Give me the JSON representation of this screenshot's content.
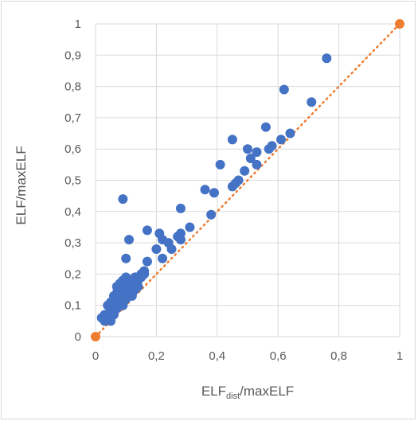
{
  "chart_data": {
    "type": "scatter",
    "title": "",
    "xlabel": {
      "main": "ELF",
      "subscript": "dist",
      "suffix": "/maxELF"
    },
    "ylabel": "ELF/maxELF",
    "xlim": [
      0,
      1
    ],
    "ylim": [
      0,
      1
    ],
    "x_ticks": [
      {
        "value": 0,
        "label": "0"
      },
      {
        "value": 0.2,
        "label": "0,2"
      },
      {
        "value": 0.4,
        "label": "0,4"
      },
      {
        "value": 0.6,
        "label": "0,6"
      },
      {
        "value": 0.8,
        "label": "0,8"
      },
      {
        "value": 1,
        "label": "1"
      }
    ],
    "y_ticks": [
      {
        "value": 0,
        "label": "0"
      },
      {
        "value": 0.1,
        "label": "0,1"
      },
      {
        "value": 0.2,
        "label": "0,2"
      },
      {
        "value": 0.3,
        "label": "0,3"
      },
      {
        "value": 0.4,
        "label": "0,4"
      },
      {
        "value": 0.5,
        "label": "0,5"
      },
      {
        "value": 0.6,
        "label": "0,6"
      },
      {
        "value": 0.7,
        "label": "0,7"
      },
      {
        "value": 0.8,
        "label": "0,8"
      },
      {
        "value": 0.9,
        "label": "0,9"
      },
      {
        "value": 1,
        "label": "1"
      }
    ],
    "grid": true,
    "legend": "none",
    "colors": {
      "points": "#4472c4",
      "reference": "#ed7d31",
      "grid": "#d9d9d9",
      "text": "#595959"
    },
    "reference_line": {
      "style": "dotted",
      "x": [
        0,
        1
      ],
      "y": [
        0,
        1
      ]
    },
    "reference_points": [
      {
        "x": 0,
        "y": 0
      },
      {
        "x": 1,
        "y": 1
      }
    ],
    "series": [
      {
        "points": [
          [
            0.76,
            0.89
          ],
          [
            0.62,
            0.79
          ],
          [
            0.71,
            0.75
          ],
          [
            0.56,
            0.67
          ],
          [
            0.64,
            0.65
          ],
          [
            0.61,
            0.63
          ],
          [
            0.58,
            0.61
          ],
          [
            0.45,
            0.63
          ],
          [
            0.5,
            0.6
          ],
          [
            0.53,
            0.59
          ],
          [
            0.57,
            0.6
          ],
          [
            0.51,
            0.57
          ],
          [
            0.41,
            0.55
          ],
          [
            0.53,
            0.55
          ],
          [
            0.49,
            0.53
          ],
          [
            0.47,
            0.5
          ],
          [
            0.46,
            0.49
          ],
          [
            0.45,
            0.48
          ],
          [
            0.36,
            0.47
          ],
          [
            0.39,
            0.46
          ],
          [
            0.09,
            0.44
          ],
          [
            0.28,
            0.41
          ],
          [
            0.38,
            0.39
          ],
          [
            0.31,
            0.35
          ],
          [
            0.28,
            0.33
          ],
          [
            0.27,
            0.32
          ],
          [
            0.24,
            0.3
          ],
          [
            0.25,
            0.28
          ],
          [
            0.2,
            0.28
          ],
          [
            0.22,
            0.31
          ],
          [
            0.21,
            0.33
          ],
          [
            0.28,
            0.31
          ],
          [
            0.17,
            0.34
          ],
          [
            0.11,
            0.31
          ],
          [
            0.22,
            0.25
          ],
          [
            0.17,
            0.24
          ],
          [
            0.1,
            0.25
          ],
          [
            0.16,
            0.21
          ],
          [
            0.15,
            0.2
          ],
          [
            0.13,
            0.19
          ],
          [
            0.12,
            0.18
          ],
          [
            0.14,
            0.18
          ],
          [
            0.1,
            0.19
          ],
          [
            0.11,
            0.17
          ],
          [
            0.09,
            0.18
          ],
          [
            0.08,
            0.17
          ],
          [
            0.07,
            0.16
          ],
          [
            0.12,
            0.16
          ],
          [
            0.1,
            0.15
          ],
          [
            0.08,
            0.14
          ],
          [
            0.06,
            0.13
          ],
          [
            0.09,
            0.13
          ],
          [
            0.11,
            0.14
          ],
          [
            0.13,
            0.15
          ],
          [
            0.07,
            0.12
          ],
          [
            0.05,
            0.11
          ],
          [
            0.08,
            0.11
          ],
          [
            0.1,
            0.12
          ],
          [
            0.12,
            0.13
          ],
          [
            0.04,
            0.1
          ],
          [
            0.06,
            0.1
          ],
          [
            0.09,
            0.1
          ],
          [
            0.05,
            0.08
          ],
          [
            0.07,
            0.09
          ],
          [
            0.03,
            0.07
          ],
          [
            0.04,
            0.06
          ],
          [
            0.06,
            0.07
          ],
          [
            0.02,
            0.06
          ],
          [
            0.03,
            0.05
          ],
          [
            0.05,
            0.05
          ],
          [
            0.11,
            0.13
          ],
          [
            0.13,
            0.17
          ],
          [
            0.15,
            0.19
          ],
          [
            0.14,
            0.16
          ],
          [
            0.16,
            0.2
          ],
          [
            0.09,
            0.16
          ],
          [
            0.07,
            0.14
          ],
          [
            0.08,
            0.12
          ],
          [
            0.1,
            0.16
          ],
          [
            0.12,
            0.15
          ]
        ]
      }
    ]
  }
}
